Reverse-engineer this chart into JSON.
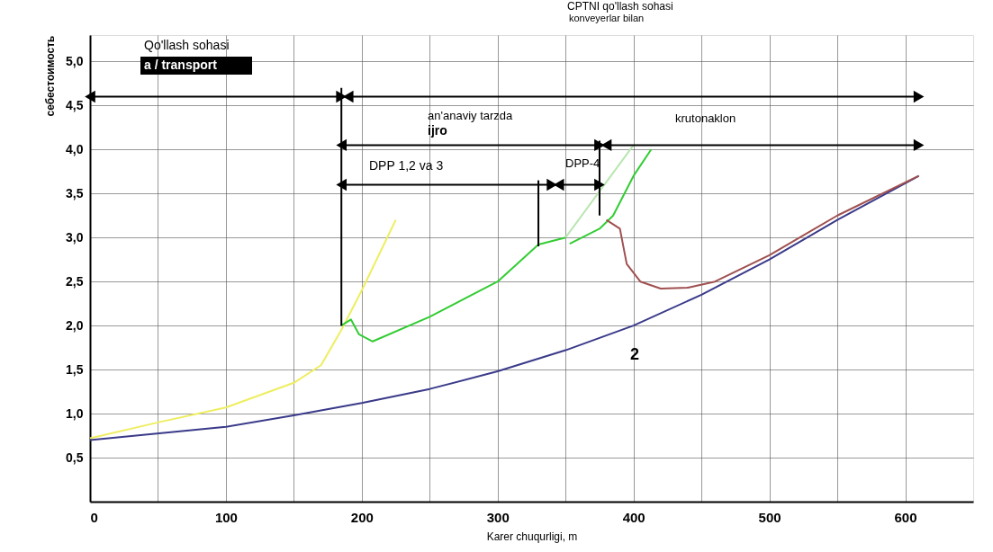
{
  "chart_data": {
    "type": "line",
    "xlabel": "Karer chuqurligi, m",
    "ylabel": "себестоимость",
    "xlim": [
      0,
      650
    ],
    "ylim": [
      0,
      5.3
    ],
    "xticks": [
      0,
      {
        "value": 50,
        "label": null
      },
      100,
      {
        "value": 150,
        "label": null
      },
      200,
      {
        "value": 250,
        "label": null
      },
      300,
      {
        "value": 350,
        "label": null
      },
      400,
      {
        "value": 450,
        "label": null
      },
      500,
      {
        "value": 550,
        "label": null
      },
      600
    ],
    "yticks": [
      {
        "value": 0.5,
        "label": "0,5"
      },
      {
        "value": 1.0,
        "label": "1,0"
      },
      {
        "value": 1.5,
        "label": "1,5"
      },
      {
        "value": 2.0,
        "label": "2,0"
      },
      {
        "value": 2.5,
        "label": "2,5"
      },
      {
        "value": 3.0,
        "label": "3,0"
      },
      {
        "value": 3.5,
        "label": "3,5"
      },
      {
        "value": 4.0,
        "label": "4,0"
      },
      {
        "value": 4.5,
        "label": "4,5"
      },
      {
        "value": 5.0,
        "label": "5,0"
      }
    ],
    "grid": true,
    "series": [
      {
        "type": "line",
        "color": "#eeee60",
        "x": [
          0,
          50,
          100,
          150,
          170,
          185,
          200,
          225
        ],
        "values": [
          0.72,
          0.9,
          1.07,
          1.35,
          1.55,
          1.95,
          2.4,
          3.2
        ]
      },
      {
        "type": "line",
        "color": "#3a3a8a",
        "x": [
          0,
          100,
          150,
          200,
          250,
          300,
          350,
          400,
          450,
          500,
          550,
          610
        ],
        "values": [
          0.7,
          0.85,
          0.98,
          1.12,
          1.28,
          1.48,
          1.72,
          2.0,
          2.35,
          2.75,
          3.2,
          3.7
        ]
      },
      {
        "type": "line",
        "color": "#33cc33",
        "x": [
          185,
          192,
          198,
          208,
          250,
          300,
          330,
          350
        ],
        "values": [
          2.0,
          2.07,
          1.9,
          1.82,
          2.1,
          2.5,
          2.92,
          3.0
        ]
      },
      {
        "type": "line",
        "color": "#33cc33",
        "x": [
          353,
          375,
          385,
          400,
          413
        ],
        "values": [
          2.93,
          3.1,
          3.25,
          3.7,
          4.0
        ]
      },
      {
        "type": "line",
        "color": "#b8e6b0",
        "x": [
          350,
          400
        ],
        "values": [
          3.0,
          4.05
        ]
      },
      {
        "type": "line",
        "color": "#a05050",
        "x": [
          380,
          390,
          395,
          405,
          420,
          440,
          460,
          500,
          550,
          610
        ],
        "values": [
          3.2,
          3.1,
          2.7,
          2.5,
          2.42,
          2.43,
          2.5,
          2.8,
          3.25,
          3.7
        ]
      },
      {
        "type": "line",
        "color": "#000000",
        "marker": "triangle",
        "x": [
          0,
          185
        ],
        "values": [
          4.6,
          4.6
        ]
      },
      {
        "type": "line",
        "color": "#000000",
        "marker": "triangle",
        "x": [
          190,
          610
        ],
        "values": [
          4.6,
          4.6
        ]
      },
      {
        "type": "line",
        "color": "#000000",
        "marker": "triangle",
        "x": [
          185,
          375
        ],
        "values": [
          4.05,
          4.05
        ]
      },
      {
        "type": "line",
        "color": "#000000",
        "marker": "triangle",
        "x": [
          380,
          610
        ],
        "values": [
          4.05,
          4.05
        ]
      },
      {
        "type": "line",
        "color": "#000000",
        "marker": "triangle",
        "x": [
          185,
          340
        ],
        "values": [
          3.6,
          3.6
        ]
      },
      {
        "type": "line",
        "color": "#000000",
        "marker": "triangle",
        "x": [
          345,
          375
        ],
        "values": [
          3.6,
          3.6
        ]
      },
      {
        "type": "line",
        "color": "#000000",
        "x": [
          185,
          185
        ],
        "values": [
          2.0,
          4.7
        ]
      },
      {
        "type": "line",
        "color": "#000000",
        "x": [
          375,
          375
        ],
        "values": [
          3.25,
          4.1
        ]
      },
      {
        "type": "line",
        "color": "#000000",
        "x": [
          330,
          330
        ],
        "values": [
          2.9,
          3.65
        ]
      }
    ],
    "annotations": [
      "Qo'llash sohasi",
      "a / transport",
      "CPTNI qo'llash sohasi",
      "konveyerlar bilan",
      "an'anaviy tarzda",
      "ijro",
      "krutonaklon",
      "DPP 1,2 va 3",
      "DPP-4",
      "2"
    ]
  }
}
